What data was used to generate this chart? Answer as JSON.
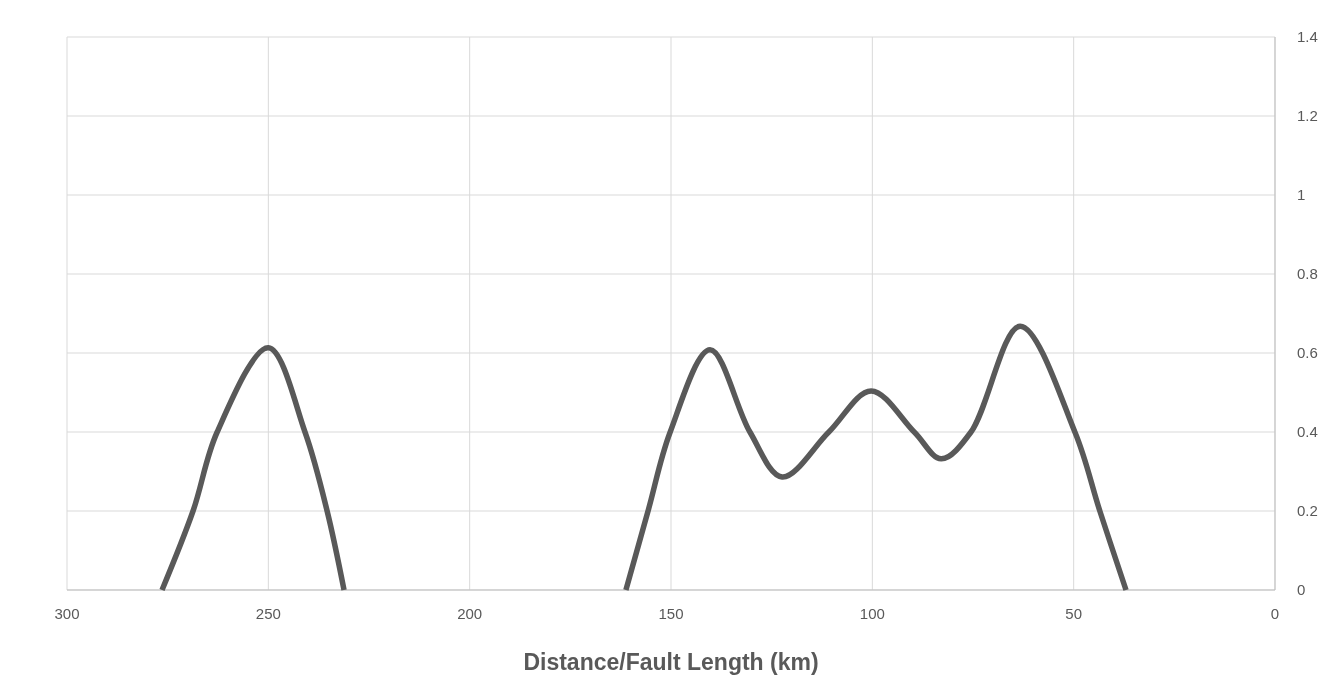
{
  "chart_data": {
    "type": "line",
    "xlabel": "Distance/Fault Length (km)",
    "xlim": [
      300,
      0
    ],
    "xticks": [
      300,
      250,
      200,
      150,
      100,
      50,
      0
    ],
    "ylim": [
      0,
      1.4
    ],
    "yticks": [
      0,
      0.2,
      0.4,
      0.6,
      0.8,
      1,
      1.2,
      1.4
    ],
    "grid": true,
    "marker": "none",
    "line_style": "solid",
    "series": [
      {
        "color": "#595959",
        "x": [
          276.4,
          268.7,
          262.7,
          250,
          240.9,
          235.4,
          231.2,
          200,
          161.2,
          155.7,
          150.2,
          140.3,
          130.4,
          122.4,
          110.8,
          100.3,
          89.6,
          82.9,
          75.5,
          63.3,
          49.7,
          43.5,
          37
        ],
        "values": [
          0,
          0.2,
          0.4,
          0.613,
          0.4,
          0.2,
          0,
          null,
          0,
          0.2,
          0.4,
          0.608,
          0.4,
          0.286,
          0.4,
          0.504,
          0.4,
          0.332,
          0.4,
          0.668,
          0.4,
          0.2,
          0
        ]
      }
    ]
  }
}
